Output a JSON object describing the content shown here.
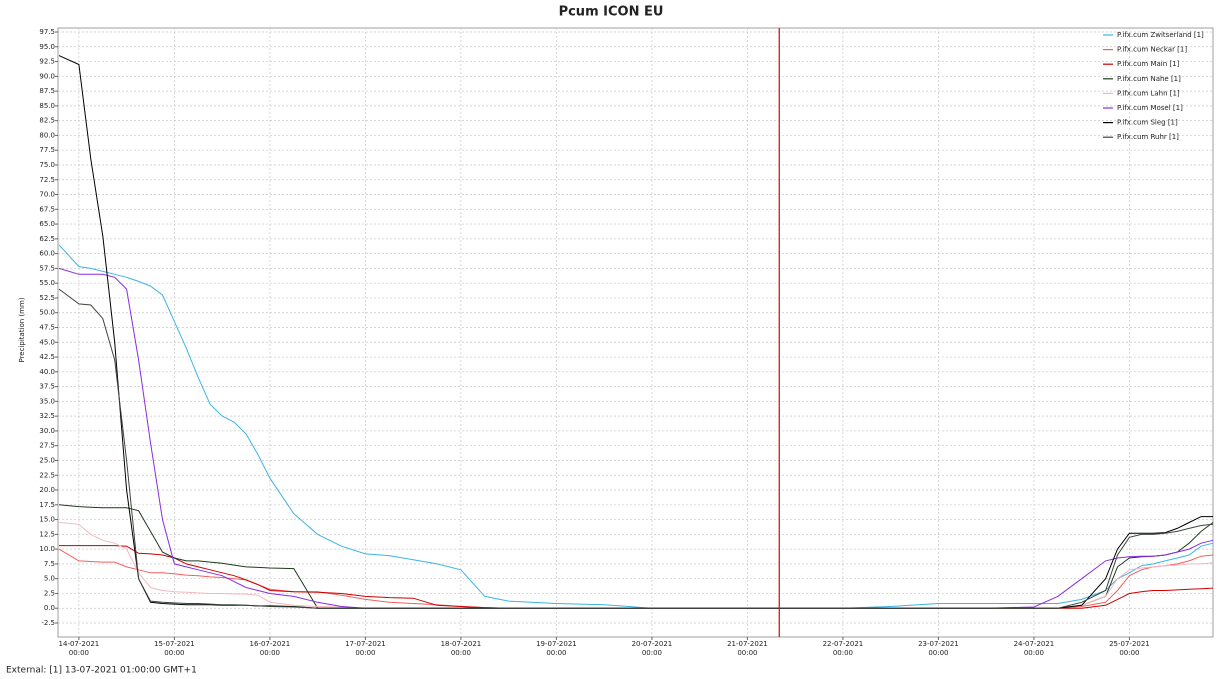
{
  "chart_data": {
    "type": "line",
    "title": "Pcum ICON EU",
    "ylabel": "Precipitation (mm)",
    "footer": "External: [1] 13-07-2021 01:00:00 GMT+1",
    "grid": true,
    "legend": "upper right",
    "vline": {
      "x": "21-07-2021 08:00",
      "color": "#e00000"
    },
    "x": [
      "13-07-2021 19:00",
      "14-07-2021 00:00",
      "14-07-2021 03:00",
      "14-07-2021 06:00",
      "14-07-2021 09:00",
      "14-07-2021 12:00",
      "14-07-2021 15:00",
      "14-07-2021 18:00",
      "14-07-2021 21:00",
      "15-07-2021 00:00",
      "15-07-2021 03:00",
      "15-07-2021 06:00",
      "15-07-2021 09:00",
      "15-07-2021 12:00",
      "15-07-2021 15:00",
      "15-07-2021 18:00",
      "15-07-2021 21:00",
      "16-07-2021 00:00",
      "16-07-2021 06:00",
      "16-07-2021 12:00",
      "16-07-2021 18:00",
      "17-07-2021 00:00",
      "17-07-2021 06:00",
      "17-07-2021 12:00",
      "17-07-2021 18:00",
      "18-07-2021 00:00",
      "18-07-2021 06:00",
      "18-07-2021 12:00",
      "19-07-2021 00:00",
      "19-07-2021 12:00",
      "20-07-2021 00:00",
      "20-07-2021 12:00",
      "21-07-2021 00:00",
      "21-07-2021 12:00",
      "22-07-2021 00:00",
      "22-07-2021 12:00",
      "23-07-2021 00:00",
      "23-07-2021 12:00",
      "24-07-2021 00:00",
      "24-07-2021 06:00",
      "24-07-2021 12:00",
      "24-07-2021 18:00",
      "24-07-2021 21:00",
      "25-07-2021 00:00",
      "25-07-2021 03:00",
      "25-07-2021 06:00",
      "25-07-2021 09:00",
      "25-07-2021 12:00",
      "25-07-2021 15:00",
      "25-07-2021 18:00",
      "25-07-2021 21:00"
    ],
    "xlim": [
      "13-07-2021 19:00",
      "25-07-2021 21:00"
    ],
    "xticks": [
      "14-07-2021 00:00",
      "15-07-2021 00:00",
      "16-07-2021 00:00",
      "17-07-2021 00:00",
      "18-07-2021 00:00",
      "19-07-2021 00:00",
      "20-07-2021 00:00",
      "21-07-2021 00:00",
      "22-07-2021 00:00",
      "23-07-2021 00:00",
      "24-07-2021 00:00",
      "25-07-2021 00:00"
    ],
    "ylim": [
      -2.5,
      97.5
    ],
    "yticks": [
      -2.5,
      {
        "value": 0,
        "label": "0.0"
      },
      2.5,
      {
        "value": 5,
        "label": "5.0"
      },
      7.5,
      {
        "value": 10,
        "label": "10.0"
      },
      12.5,
      {
        "value": 15,
        "label": "15.0"
      },
      17.5,
      {
        "value": 20,
        "label": "20.0"
      },
      22.5,
      {
        "value": 25,
        "label": "25.0"
      },
      27.5,
      {
        "value": 30,
        "label": "30.0"
      },
      32.5,
      {
        "value": 35,
        "label": "35.0"
      },
      37.5,
      {
        "value": 40,
        "label": "40.0"
      },
      42.5,
      {
        "value": 45,
        "label": "45.0"
      },
      47.5,
      {
        "value": 50,
        "label": "50.0"
      },
      52.5,
      {
        "value": 55,
        "label": "55.0"
      },
      57.5,
      {
        "value": 60,
        "label": "60.0"
      },
      62.5,
      {
        "value": 65,
        "label": "65.0"
      },
      67.5,
      {
        "value": 70,
        "label": "70.0"
      },
      72.5,
      {
        "value": 75,
        "label": "75.0"
      },
      77.5,
      {
        "value": 80,
        "label": "80.0"
      },
      82.5,
      {
        "value": 85,
        "label": "85.0"
      },
      87.5,
      {
        "value": 90,
        "label": "90.0"
      },
      92.5,
      {
        "value": 95,
        "label": "95.0"
      },
      97.5
    ],
    "series": [
      {
        "name": "P.ifx.cum Zwitserland [1]",
        "color": "#3cb4e6",
        "values": [
          61.5,
          57.8,
          57.5,
          57,
          56.5,
          56,
          55.3,
          54.5,
          53,
          48.5,
          44,
          39,
          34.5,
          32.5,
          31.5,
          29.5,
          26,
          22,
          16,
          12.5,
          10.5,
          9.2,
          8.9,
          8.2,
          7.5,
          6.5,
          2,
          1.2,
          0.8,
          0.6,
          0,
          0,
          0,
          0,
          0,
          0.3,
          0.8,
          0.8,
          0.8,
          0.8,
          1.5,
          3,
          5,
          6,
          7.2,
          7.5,
          8,
          8.5,
          9,
          10.5,
          11
        ]
      },
      {
        "name": "P.ifx.cum Neckar [1]",
        "color": "#f06060",
        "values": [
          10,
          8,
          7.9,
          7.8,
          7.8,
          7,
          6.5,
          6,
          6,
          5.8,
          5.6,
          5.5,
          5.3,
          5.2,
          5,
          4.8,
          4,
          3.2,
          2.8,
          2.8,
          2.2,
          1.5,
          1,
          0.8,
          0.6,
          0.3,
          0.1,
          0,
          0,
          0,
          0,
          0,
          0,
          0,
          0,
          0,
          0,
          0,
          0,
          0,
          0.3,
          1,
          3,
          5.5,
          6.5,
          7,
          7.2,
          7.5,
          8,
          8.8,
          9
        ]
      },
      {
        "name": "P.ifx.cum Main [1]",
        "color": "#cc0000",
        "values": [
          10.6,
          10.6,
          10.6,
          10.6,
          10.6,
          10.5,
          9.3,
          9.2,
          9,
          8.5,
          7.5,
          7,
          6.5,
          6,
          5.5,
          4.8,
          4,
          3,
          2.8,
          2.7,
          2.5,
          2,
          1.8,
          1.7,
          0.5,
          0.3,
          0.1,
          0,
          0,
          0,
          0,
          0,
          0,
          0,
          0,
          0,
          0,
          0,
          0,
          0,
          0,
          0.5,
          1.5,
          2.5,
          2.8,
          3,
          3,
          3.1,
          3.2,
          3.3,
          3.4
        ]
      },
      {
        "name": "P.ifx.cum Nahe [1]",
        "color": "#1e3a1e",
        "values": [
          17.5,
          17.2,
          17.1,
          17,
          17,
          17,
          16.5,
          13,
          9.5,
          8.5,
          8,
          8,
          7.8,
          7.6,
          7.3,
          7,
          6.9,
          6.8,
          6.7,
          0,
          0,
          0,
          0,
          0,
          0,
          0,
          0,
          0,
          0,
          0,
          0,
          0,
          0,
          0,
          0,
          0,
          0,
          0,
          0,
          0,
          0.5,
          2,
          7,
          8.5,
          8.7,
          8.8,
          9,
          9.5,
          11,
          13,
          14.5
        ]
      },
      {
        "name": "P.ifx.cum Lahn [1]",
        "color": "#f4b8c0",
        "values": [
          14.5,
          14.2,
          12.5,
          11.5,
          11,
          10,
          6,
          3.5,
          3,
          2.8,
          2.7,
          2.6,
          2.5,
          2.5,
          2.4,
          2.4,
          2.2,
          1,
          0.5,
          0.3,
          0.2,
          0,
          0,
          0,
          0,
          0,
          0,
          0,
          0,
          0,
          0,
          0,
          0,
          0,
          0,
          0,
          0,
          0,
          0,
          0,
          0.5,
          2,
          5,
          6.5,
          6.8,
          7,
          7.2,
          7.3,
          7.5,
          7.5,
          7.7
        ]
      },
      {
        "name": "P.ifx.cum Mosel [1]",
        "color": "#8a2be2",
        "values": [
          57.5,
          56.5,
          56.5,
          56.5,
          56,
          54,
          42,
          28,
          15,
          7.5,
          7,
          6.5,
          6,
          5.5,
          4.5,
          3.5,
          3,
          2.5,
          2,
          1,
          0.3,
          0,
          0,
          0,
          0,
          0,
          0,
          0,
          0,
          0,
          0,
          0,
          0,
          0,
          0,
          0,
          0,
          0,
          0.2,
          2,
          5,
          8,
          8.5,
          8.7,
          8.8,
          8.8,
          9,
          9.5,
          10,
          11,
          11.5
        ]
      },
      {
        "name": "P.ifx.cum Sieg [1]",
        "color": "#000000",
        "values": [
          93.5,
          92,
          76,
          63,
          45,
          20,
          5,
          1,
          0.8,
          0.7,
          0.6,
          0.6,
          0.6,
          0.5,
          0.5,
          0.5,
          0.4,
          0.4,
          0.3,
          0,
          0,
          0,
          0,
          0,
          0,
          0,
          0,
          0,
          0,
          0,
          0,
          0,
          0,
          0,
          0,
          0,
          0,
          0,
          0,
          0,
          0.5,
          5,
          10,
          12.7,
          12.7,
          12.7,
          12.8,
          13.5,
          14.5,
          15.5,
          15.5
        ]
      },
      {
        "name": "P.ifx.cum Ruhr [1]",
        "color": "#3c463c",
        "values": [
          54,
          51.5,
          51.3,
          49,
          42,
          25,
          5,
          1.2,
          1,
          0.9,
          0.8,
          0.8,
          0.7,
          0.6,
          0.6,
          0.5,
          0.4,
          0.3,
          0.2,
          0,
          0,
          0,
          0,
          0,
          0,
          0,
          0,
          0,
          0,
          0,
          0,
          0,
          0,
          0,
          0,
          0,
          0,
          0,
          0,
          0,
          1,
          3,
          9,
          12,
          12.5,
          12.5,
          12.7,
          13,
          13.5,
          14,
          14.2
        ]
      }
    ]
  }
}
